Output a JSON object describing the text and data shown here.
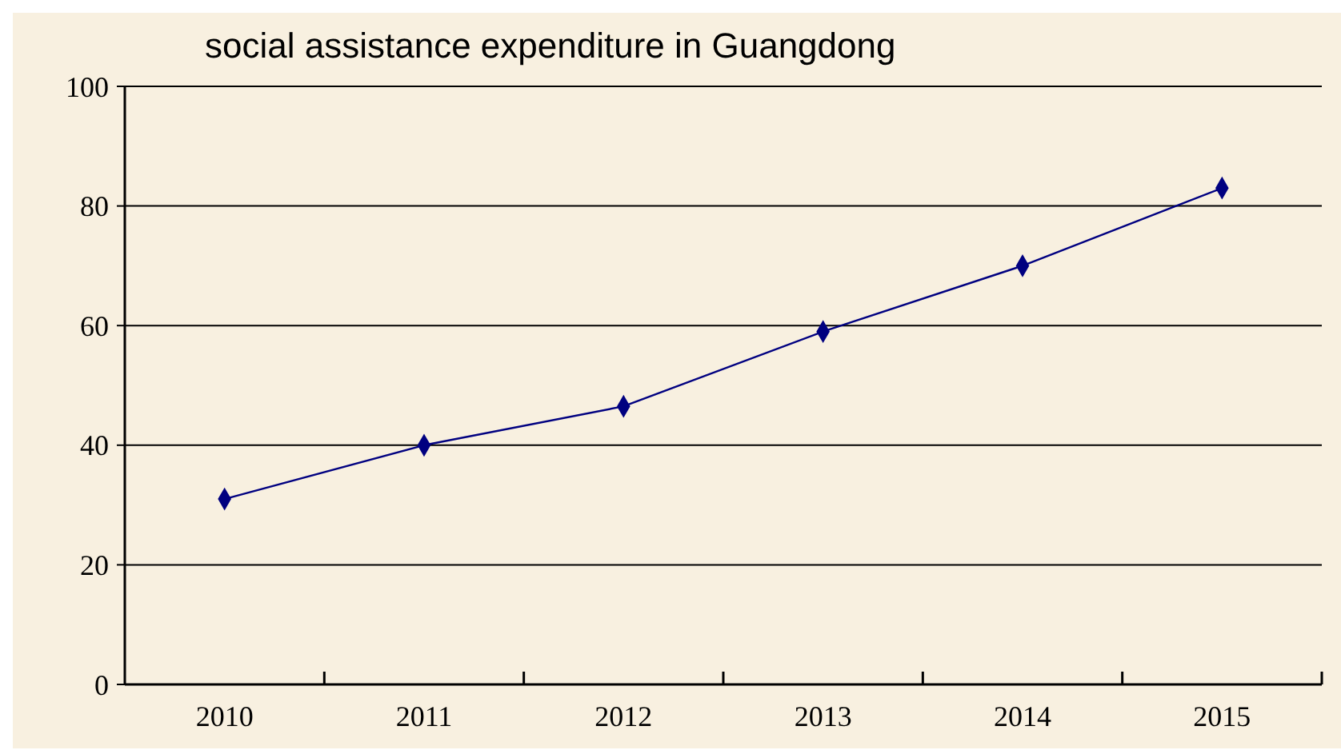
{
  "chart_data": {
    "type": "line",
    "title": "social assistance expenditure in Guangdong",
    "categories": [
      "2010",
      "2011",
      "2012",
      "2013",
      "2014",
      "2015"
    ],
    "series": [
      {
        "color": "#000080",
        "values": [
          31,
          40,
          46.5,
          59,
          70,
          83
        ]
      }
    ],
    "ylim": [
      0,
      100
    ],
    "yticks": [
      0,
      20,
      40,
      60,
      80,
      100
    ],
    "grid": "y",
    "marker": "diamond",
    "line_style": "solid"
  }
}
